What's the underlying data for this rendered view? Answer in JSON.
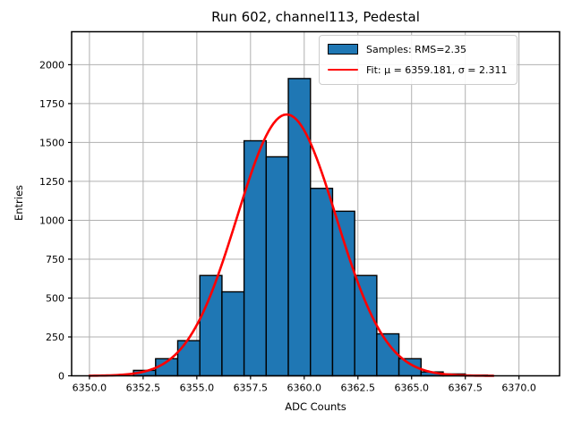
{
  "chart_data": {
    "type": "bar",
    "subtype": "histogram-with-gaussian-fit",
    "title": "Run 602, channel113, Pedestal",
    "xlabel": "ADC Counts",
    "ylabel": "Entries",
    "xlim": [
      6349.17,
      6371.89
    ],
    "ylim": [
      0,
      2212
    ],
    "grid": true,
    "xticks": [
      6350.0,
      6352.5,
      6355.0,
      6357.5,
      6360.0,
      6362.5,
      6365.0,
      6367.5,
      6370.0
    ],
    "xtick_labels": [
      "6350.0",
      "6352.5",
      "6355.0",
      "6357.5",
      "6360.0",
      "6362.5",
      "6365.0",
      "6367.5",
      "6370.0"
    ],
    "yticks": [
      0,
      250,
      500,
      750,
      1000,
      1250,
      1500,
      1750,
      2000
    ],
    "ytick_labels": [
      "0",
      "250",
      "500",
      "750",
      "1000",
      "1250",
      "1500",
      "1750",
      "2000"
    ],
    "bin_edges": [
      6352.05,
      6353.08,
      6354.11,
      6355.14,
      6356.17,
      6357.2,
      6358.23,
      6359.26,
      6360.29,
      6361.32,
      6362.35,
      6363.38,
      6364.41,
      6365.44,
      6366.47,
      6367.5,
      6368.53
    ],
    "values": [
      35,
      110,
      226,
      645,
      540,
      1511,
      1408,
      1911,
      1205,
      1058,
      645,
      270,
      110,
      25,
      12,
      5
    ],
    "fit": {
      "mu": 6359.181,
      "sigma": 2.311,
      "amplitude": 1680,
      "x_start": 6350.0,
      "x_end": 6368.8
    },
    "legend": {
      "position": "upper right",
      "entries": [
        {
          "label": "Samples: RMS=2.35",
          "marker": "patch",
          "color": "#1f77b4"
        },
        {
          "label": "Fit: μ = 6359.181, σ = 2.311",
          "marker": "line",
          "color": "#ff0000"
        }
      ]
    },
    "colors": {
      "bar_fill": "#1f77b4",
      "bar_edge": "#000000",
      "fit_line": "#ff0000",
      "grid": "#b0b0b0",
      "spine": "#000000",
      "text": "#000000"
    }
  }
}
